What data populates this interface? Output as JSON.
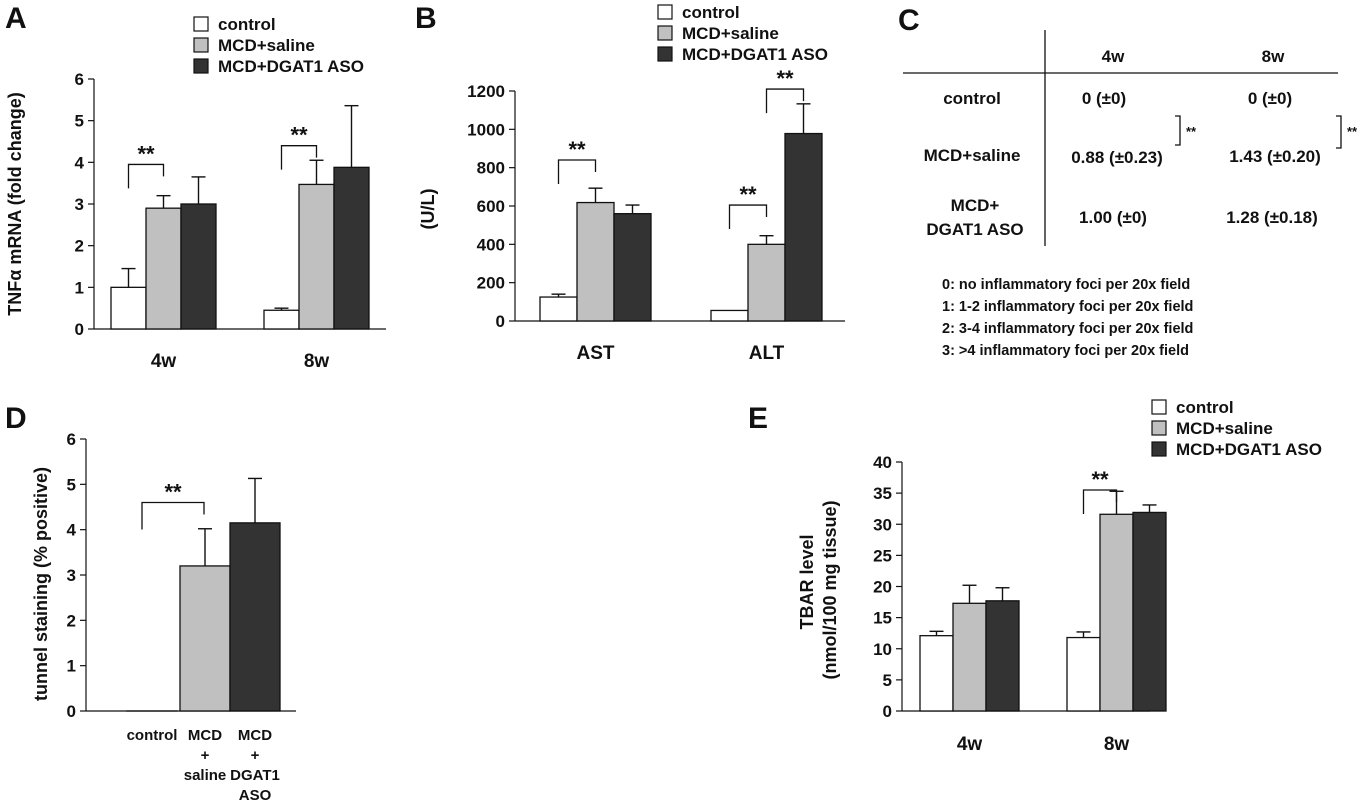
{
  "colors": {
    "control": "#ffffff",
    "mcd_saline": "#c0c0c0",
    "mcd_dgat1": "#333333",
    "stroke": "#111111"
  },
  "legend_labels": [
    "control",
    "MCD+saline",
    "MCD+DGAT1 ASO"
  ],
  "chart_data": [
    {
      "panel": "A",
      "type": "bar",
      "ylabel": "TNFα mRNA (fold change)",
      "categories": [
        "4w",
        "8w"
      ],
      "ylim": [
        0,
        6
      ],
      "yticks": [
        0,
        1,
        2,
        3,
        4,
        5,
        6
      ],
      "series": [
        {
          "name": "control",
          "values": [
            1.0,
            0.45
          ],
          "errors": [
            0.45,
            0.05
          ]
        },
        {
          "name": "MCD+saline",
          "values": [
            2.9,
            3.47
          ],
          "errors": [
            0.3,
            0.58
          ]
        },
        {
          "name": "MCD+DGAT1 ASO",
          "values": [
            3.0,
            3.88
          ],
          "errors": [
            0.65,
            1.48
          ]
        }
      ],
      "significance": [
        {
          "label": "**",
          "category": 0,
          "from": 0,
          "to": 1,
          "y": 3.95
        },
        {
          "label": "**",
          "category": 1,
          "from": 0,
          "to": 1,
          "y": 4.4
        }
      ]
    },
    {
      "panel": "B",
      "type": "bar",
      "ylabel": "(U/L)",
      "categories": [
        "AST",
        "ALT"
      ],
      "ylim": [
        0,
        1200
      ],
      "yticks": [
        0,
        200,
        400,
        600,
        800,
        1000,
        1200
      ],
      "series": [
        {
          "name": "control",
          "values": [
            125,
            55
          ],
          "errors": [
            15,
            0
          ]
        },
        {
          "name": "MCD+saline",
          "values": [
            618,
            400
          ],
          "errors": [
            75,
            45
          ]
        },
        {
          "name": "MCD+DGAT1 ASO",
          "values": [
            560,
            978
          ],
          "errors": [
            45,
            155
          ]
        }
      ],
      "significance": [
        {
          "label": "**",
          "category": 0,
          "from": 0,
          "to": 1,
          "y": 840
        },
        {
          "label": "**",
          "category": 1,
          "from": 0,
          "to": 1,
          "y": 605
        },
        {
          "label": "**",
          "category": 1,
          "from": 1,
          "to": 2,
          "y": 1210
        }
      ]
    },
    {
      "panel": "C",
      "type": "table",
      "columns": [
        "4w",
        "8w"
      ],
      "rows": [
        {
          "label": "control",
          "cells": [
            "0 (±0)",
            "0 (±0)"
          ]
        },
        {
          "label": "MCD+saline",
          "cells": [
            "0.88 (±0.23)",
            "1.43 (±0.20)"
          ]
        },
        {
          "label_lines": [
            "MCD+",
            "DGAT1 ASO"
          ],
          "cells": [
            "1.00 (±0)",
            "1.28 (±0.18)"
          ]
        }
      ],
      "significance": [
        "**",
        "**"
      ],
      "notes": [
        "0: no inflammatory foci per 20x field",
        "1: 1-2 inflammatory foci per 20x field",
        "2: 3-4 inflammatory foci per 20x field",
        "3: >4 inflammatory foci per 20x field"
      ]
    },
    {
      "panel": "D",
      "type": "bar",
      "ylabel": "tunnel staining (% positive)",
      "categories": [
        [
          "control"
        ],
        [
          "MCD",
          "+",
          "saline"
        ],
        [
          "MCD",
          "+",
          "DGAT1",
          "ASO"
        ]
      ],
      "ylim": [
        0,
        6
      ],
      "yticks": [
        0,
        1,
        2,
        3,
        4,
        5,
        6
      ],
      "values": [
        0.0,
        3.2,
        4.15
      ],
      "errors": [
        0,
        0.82,
        0.98
      ],
      "significance": [
        {
          "label": "**",
          "from": 0,
          "to": 1,
          "y": 4.6
        }
      ]
    },
    {
      "panel": "E",
      "type": "bar",
      "ylabel": "TBAR level",
      "ylabel2": "(nmol/100 mg tissue)",
      "categories": [
        "4w",
        "8w"
      ],
      "ylim": [
        0,
        40
      ],
      "yticks": [
        0,
        5,
        10,
        15,
        20,
        25,
        30,
        35,
        40
      ],
      "series": [
        {
          "name": "control",
          "values": [
            12.1,
            11.8
          ],
          "errors": [
            0.7,
            0.9
          ]
        },
        {
          "name": "MCD+saline",
          "values": [
            17.3,
            31.6
          ],
          "errors": [
            2.9,
            3.7
          ]
        },
        {
          "name": "MCD+DGAT1 ASO",
          "values": [
            17.7,
            31.9
          ],
          "errors": [
            2.1,
            1.2
          ]
        }
      ],
      "significance": [
        {
          "label": "**",
          "category": 1,
          "from": 0,
          "to": 1,
          "y": 35.5
        }
      ]
    }
  ]
}
